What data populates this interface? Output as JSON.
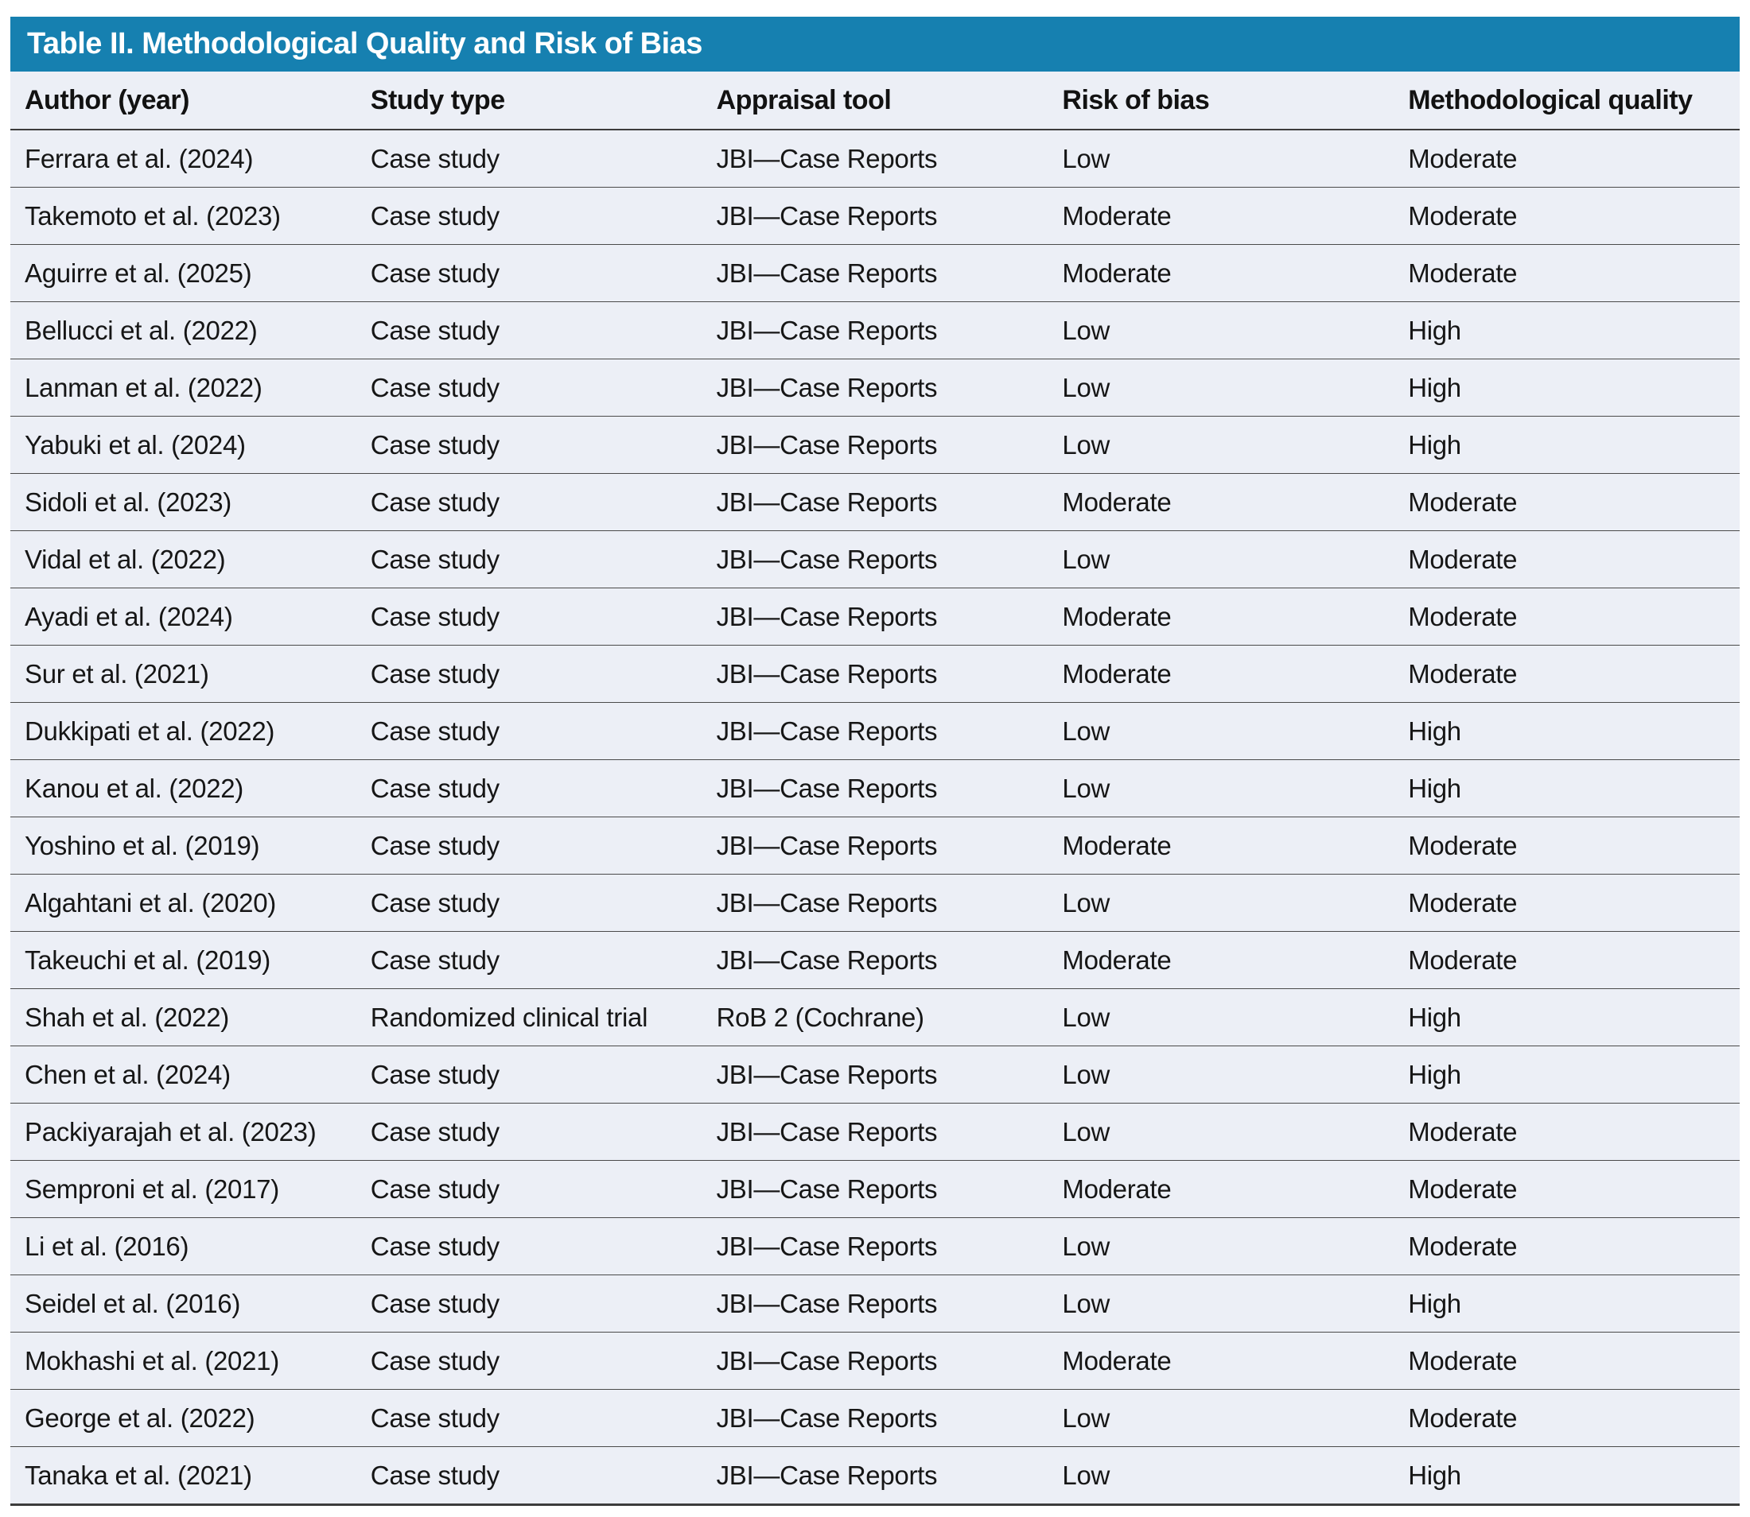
{
  "table": {
    "title": "Table II. Methodological Quality and Risk of Bias",
    "accent_color": "#1680B0",
    "row_background_color": "#ECEFF6",
    "columns": [
      "Author (year)",
      "Study type",
      "Appraisal tool",
      "Risk of bias",
      "Methodological quality"
    ],
    "rows": [
      [
        "Ferrara et al. (2024)",
        "Case study",
        "JBI—Case Reports",
        "Low",
        "Moderate"
      ],
      [
        "Takemoto et al. (2023)",
        "Case study",
        "JBI—Case Reports",
        "Moderate",
        "Moderate"
      ],
      [
        "Aguirre et al. (2025)",
        "Case study",
        "JBI—Case Reports",
        "Moderate",
        "Moderate"
      ],
      [
        "Bellucci et al. (2022)",
        "Case study",
        "JBI—Case Reports",
        "Low",
        "High"
      ],
      [
        "Lanman et al. (2022)",
        "Case study",
        "JBI—Case Reports",
        "Low",
        "High"
      ],
      [
        "Yabuki et al. (2024)",
        "Case study",
        "JBI—Case Reports",
        "Low",
        "High"
      ],
      [
        "Sidoli et al. (2023)",
        "Case study",
        "JBI—Case Reports",
        "Moderate",
        "Moderate"
      ],
      [
        "Vidal et al. (2022)",
        "Case study",
        "JBI—Case Reports",
        "Low",
        "Moderate"
      ],
      [
        "Ayadi et al. (2024)",
        "Case study",
        "JBI—Case Reports",
        "Moderate",
        "Moderate"
      ],
      [
        "Sur et al. (2021)",
        "Case study",
        "JBI—Case Reports",
        "Moderate",
        "Moderate"
      ],
      [
        "Dukkipati et al. (2022)",
        "Case study",
        "JBI—Case Reports",
        "Low",
        "High"
      ],
      [
        "Kanou et al. (2022)",
        "Case study",
        "JBI—Case Reports",
        "Low",
        "High"
      ],
      [
        "Yoshino et al. (2019)",
        "Case study",
        "JBI—Case Reports",
        "Moderate",
        "Moderate"
      ],
      [
        "Algahtani et al. (2020)",
        "Case study",
        "JBI—Case Reports",
        "Low",
        "Moderate"
      ],
      [
        "Takeuchi et al. (2019)",
        "Case study",
        "JBI—Case Reports",
        "Moderate",
        "Moderate"
      ],
      [
        "Shah et al. (2022)",
        "Randomized clinical trial",
        "RoB 2 (Cochrane)",
        "Low",
        "High"
      ],
      [
        "Chen et al. (2024)",
        "Case study",
        "JBI—Case Reports",
        "Low",
        "High"
      ],
      [
        "Packiyarajah et al. (2023)",
        "Case study",
        "JBI—Case Reports",
        "Low",
        "Moderate"
      ],
      [
        "Semproni et al. (2017)",
        "Case study",
        "JBI—Case Reports",
        "Moderate",
        "Moderate"
      ],
      [
        "Li et al. (2016)",
        "Case study",
        "JBI—Case Reports",
        "Low",
        "Moderate"
      ],
      [
        "Seidel et al. (2016)",
        "Case study",
        "JBI—Case Reports",
        "Low",
        "High"
      ],
      [
        "Mokhashi et al. (2021)",
        "Case study",
        "JBI—Case Reports",
        "Moderate",
        "Moderate"
      ],
      [
        "George et al. (2022)",
        "Case study",
        "JBI—Case Reports",
        "Low",
        "Moderate"
      ],
      [
        "Tanaka et al. (2021)",
        "Case study",
        "JBI—Case Reports",
        "Low",
        "High"
      ]
    ]
  }
}
